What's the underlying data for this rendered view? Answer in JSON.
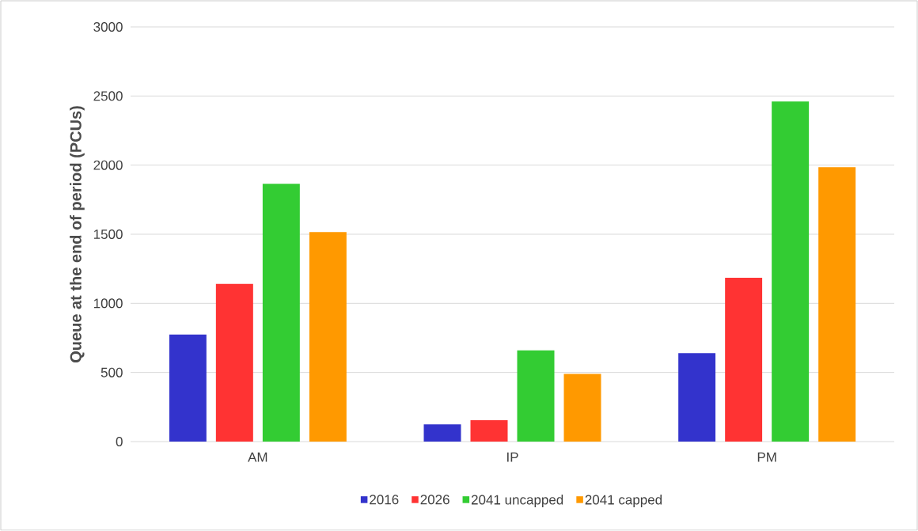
{
  "chart_data": {
    "type": "bar",
    "ylabel": "Queue at the end of period (PCUs)",
    "categories": [
      "AM",
      "IP",
      "PM"
    ],
    "series": [
      {
        "name": "2016",
        "color": "#3333cc",
        "values": [
          775,
          125,
          640
        ]
      },
      {
        "name": "2026",
        "color": "#ff3333",
        "values": [
          1140,
          155,
          1185
        ]
      },
      {
        "name": "2041 uncapped",
        "color": "#33cc33",
        "values": [
          1865,
          660,
          2460
        ]
      },
      {
        "name": "2041 capped",
        "color": "#ff9900",
        "values": [
          1515,
          490,
          1985
        ]
      }
    ],
    "ylim": [
      0,
      3000
    ],
    "yticks": [
      0,
      500,
      1000,
      1500,
      2000,
      2500,
      3000
    ],
    "grid": "y",
    "legend": "bottom"
  }
}
